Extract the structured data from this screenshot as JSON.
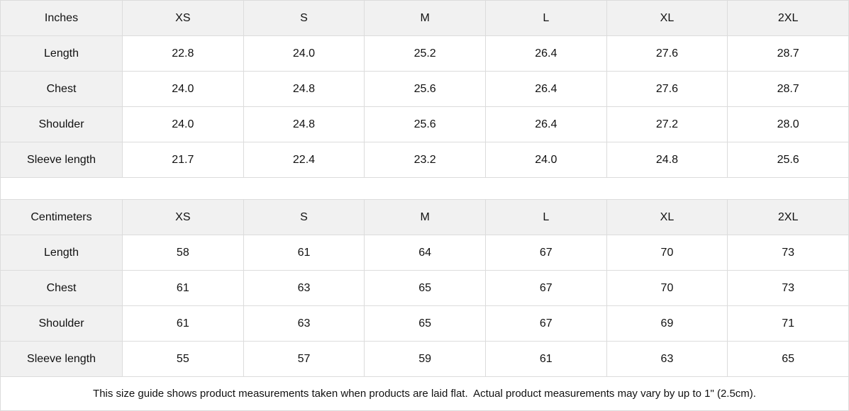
{
  "colors": {
    "header_bg": "#f1f1f1",
    "border": "#dcdcdc",
    "text": "#111111",
    "background": "#ffffff"
  },
  "chart_data": [
    {
      "type": "table",
      "title": "Inches",
      "columns": [
        "Inches",
        "XS",
        "S",
        "M",
        "L",
        "XL",
        "2XL"
      ],
      "rows": [
        [
          "Length",
          "22.8",
          "24.0",
          "25.2",
          "26.4",
          "27.6",
          "28.7"
        ],
        [
          "Chest",
          "24.0",
          "24.8",
          "25.6",
          "26.4",
          "27.6",
          "28.7"
        ],
        [
          "Shoulder",
          "24.0",
          "24.8",
          "25.6",
          "26.4",
          "27.2",
          "28.0"
        ],
        [
          "Sleeve length",
          "21.7",
          "22.4",
          "23.2",
          "24.0",
          "24.8",
          "25.6"
        ]
      ]
    },
    {
      "type": "table",
      "title": "Centimeters",
      "columns": [
        "Centimeters",
        "XS",
        "S",
        "M",
        "L",
        "XL",
        "2XL"
      ],
      "rows": [
        [
          "Length",
          "58",
          "61",
          "64",
          "67",
          "70",
          "73"
        ],
        [
          "Chest",
          "61",
          "63",
          "65",
          "67",
          "70",
          "73"
        ],
        [
          "Shoulder",
          "61",
          "63",
          "65",
          "67",
          "69",
          "71"
        ],
        [
          "Sleeve length",
          "55",
          "57",
          "59",
          "61",
          "63",
          "65"
        ]
      ]
    }
  ],
  "note": "This size guide shows product measurements taken when products are laid flat.  Actual product measurements may vary by up to 1\" (2.5cm)."
}
